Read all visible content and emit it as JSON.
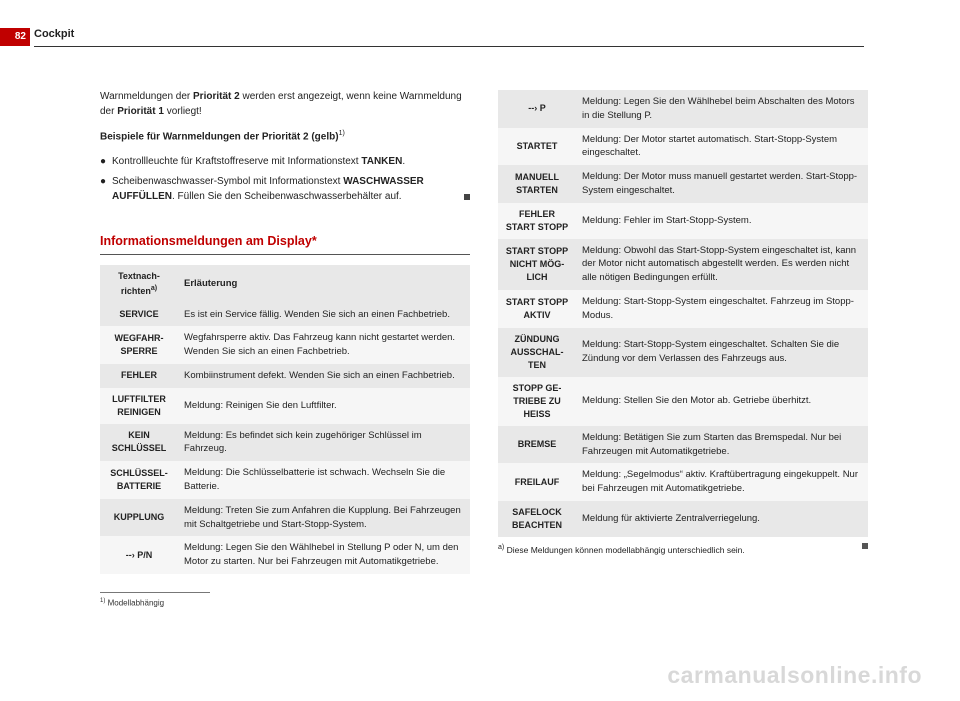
{
  "page_number": "82",
  "header_title": "Cockpit",
  "intro_part1": "Warnmeldungen der ",
  "intro_bold1": "Priorität 2",
  "intro_part2": " werden erst angezeigt, wenn keine Warnmeldung der ",
  "intro_bold2": "Priorität 1",
  "intro_part3": " vorliegt!",
  "examples_heading": "Beispiele für Warnmeldungen der Priorität 2 (gelb)",
  "examples_sup": "1)",
  "bullet1_a": "Kontrollleuchte für Kraftstoffreserve mit Informationstext ",
  "bullet1_b": "TANKEN",
  "bullet1_c": ".",
  "bullet2_a": "Scheibenwaschwasser-Symbol ",
  "bullet2_icon": "⛽",
  "bullet2_b": " mit Informationstext ",
  "bullet2_c": "WASCHWASSER AUFFÜLLEN",
  "bullet2_d": ". Füllen Sie den Scheibenwaschwasserbehälter auf.",
  "section_heading": "Informationsmeldungen am Display*",
  "table_header_left": "Textnach-richten",
  "table_header_left_sup": "a)",
  "table_header_right": "Erläuterung",
  "left_rows": [
    {
      "l": "SERVICE",
      "r": "Es ist ein Service fällig. Wenden Sie sich an einen Fachbetrieb."
    },
    {
      "l": "WEGFAHR-SPERRE",
      "r": "Wegfahrsperre aktiv. Das Fahrzeug kann nicht gestartet werden. Wenden Sie sich an einen Fachbetrieb."
    },
    {
      "l": "FEHLER",
      "r": "Kombiinstrument defekt. Wenden Sie sich an einen Fachbetrieb."
    },
    {
      "l": "LUFTFILTER REINIGEN",
      "r": "Meldung: Reinigen Sie den Luftfilter."
    },
    {
      "l": "KEIN SCHLÜSSEL",
      "r": "Meldung: Es befindet sich kein zugehöriger Schlüssel im Fahrzeug."
    },
    {
      "l": "SCHLÜSSEL-BATTERIE",
      "r": "Meldung: Die Schlüsselbatterie ist schwach. Wechseln Sie die Batterie."
    },
    {
      "l": "KUPPLUNG",
      "r": "Meldung: Treten Sie zum Anfahren die Kupplung. Bei Fahrzeugen mit Schaltgetriebe und Start-Stopp-System."
    },
    {
      "l": "--› P/N",
      "r": "Meldung: Legen Sie den Wählhebel in Stellung P oder N, um den Motor zu starten. Nur bei Fahrzeugen mit Automatikgetriebe."
    }
  ],
  "right_rows": [
    {
      "l": "--› P",
      "r": "Meldung: Legen Sie den Wählhebel beim Abschalten des Motors in die Stellung P."
    },
    {
      "l": "STARTET",
      "r": "Meldung: Der Motor startet automatisch. Start-Stopp-System eingeschaltet."
    },
    {
      "l": "MANUELL STARTEN",
      "r": "Meldung: Der Motor muss manuell gestartet werden. Start-Stopp-System eingeschaltet."
    },
    {
      "l": "FEHLER START STOPP",
      "r": "Meldung: Fehler im Start-Stopp-System."
    },
    {
      "l": "START STOPP NICHT MÖG-LICH",
      "r": "Meldung: Obwohl das Start-Stopp-System eingeschaltet ist, kann der Motor nicht automatisch abgestellt werden. Es werden nicht alle nötigen Bedingungen erfüllt."
    },
    {
      "l": "START STOPP AKTIV",
      "r": "Meldung: Start-Stopp-System eingeschaltet. Fahrzeug im Stopp-Modus."
    },
    {
      "l": "ZÜNDUNG AUSSCHAL-TEN",
      "r": "Meldung: Start-Stopp-System eingeschaltet. Schalten Sie die Zündung vor dem Verlassen des Fahrzeugs aus."
    },
    {
      "l": "STOPP GE-TRIEBE ZU HEISS",
      "r": "Meldung: Stellen Sie den Motor ab. Getriebe überhitzt."
    },
    {
      "l": "BREMSE",
      "r": "Meldung: Betätigen Sie zum Starten das Bremspedal. Nur bei Fahrzeugen mit Automatikgetriebe."
    },
    {
      "l": "FREILAUF",
      "r": "Meldung: „Segelmodus“ aktiv. Kraftübertragung eingekuppelt. Nur bei Fahrzeugen mit Automatikgetriebe."
    },
    {
      "l": "SAFELOCK BEACHTEN",
      "r": "Meldung für aktivierte Zentralverriegelung."
    }
  ],
  "footnote_left_sup": "1)",
  "footnote_left": "Modellabhängig",
  "footnote_right_sup": "a)",
  "footnote_right": "Diese Meldungen können modellabhängig unterschiedlich sein.",
  "watermark": "carmanualsonline.info",
  "colors": {
    "accent": "#c00000",
    "row_odd": "#e8e8e8",
    "row_even": "#f6f6f6"
  }
}
